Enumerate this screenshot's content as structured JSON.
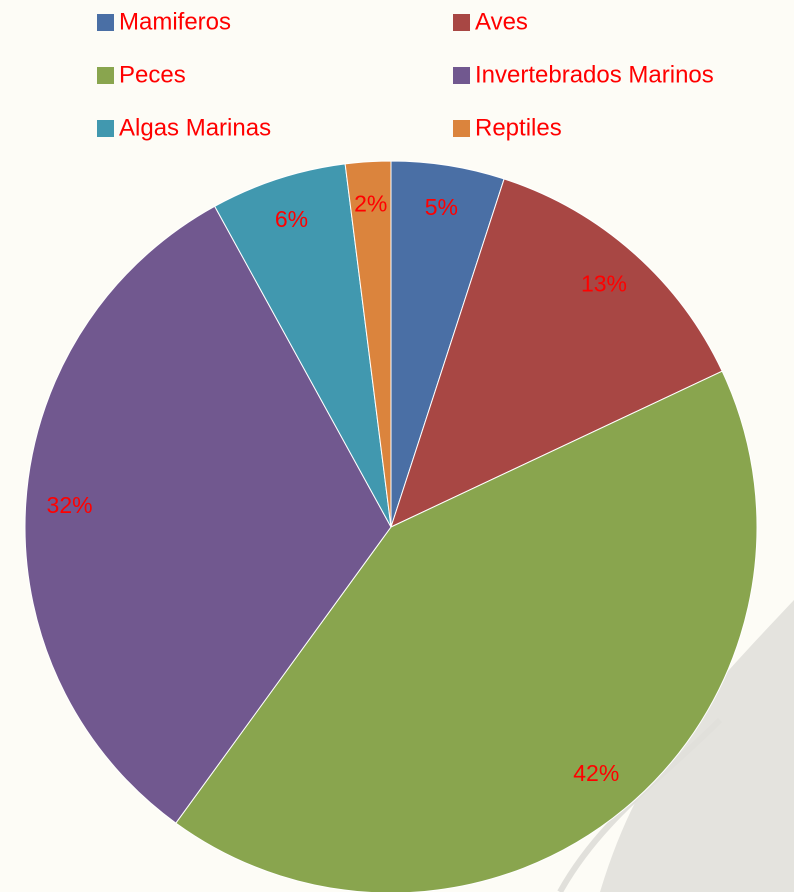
{
  "chart_data": {
    "type": "pie",
    "categories": [
      "Mamiferos",
      "Aves",
      "Peces",
      "Invertebrados Marinos",
      "Algas Marinas",
      "Reptiles"
    ],
    "values": [
      5,
      13,
      42,
      32,
      6,
      2
    ],
    "value_labels": [
      "5%",
      "13%",
      "42%",
      "32%",
      "6%",
      "2%"
    ],
    "colors": [
      "#4a6fa5",
      "#a84744",
      "#89a54e",
      "#71588f",
      "#4198af",
      "#db843d"
    ]
  }
}
